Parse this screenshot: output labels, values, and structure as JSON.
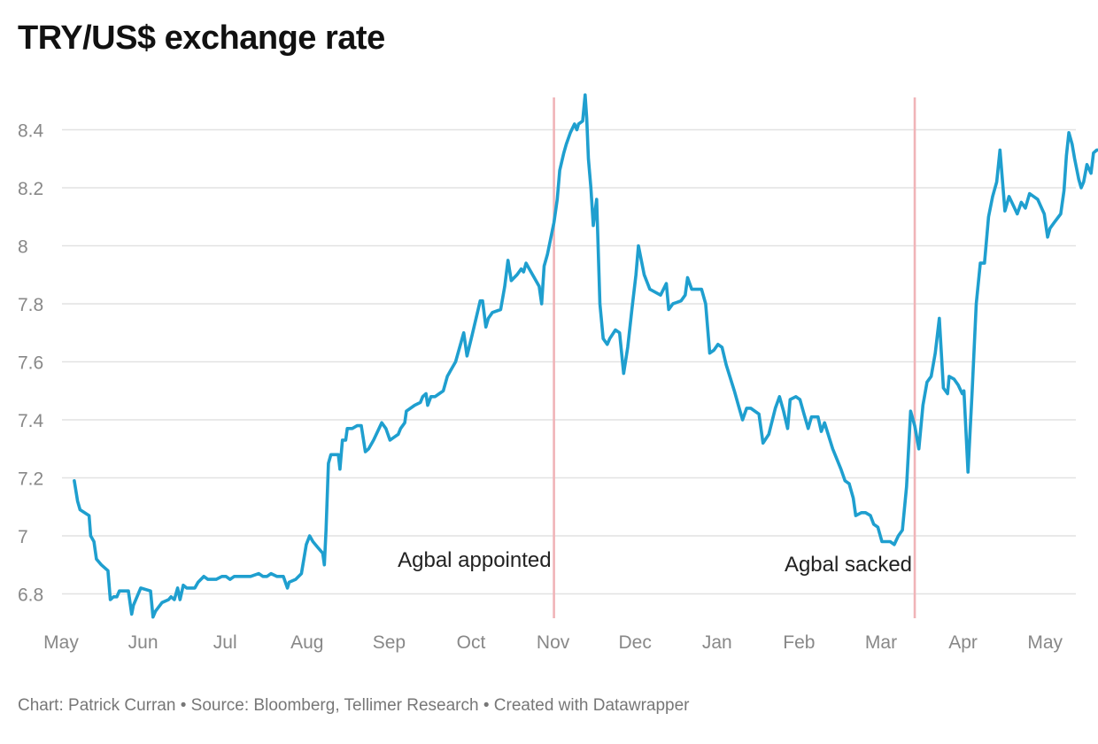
{
  "title": "TRY/US$ exchange rate",
  "footer": {
    "chart_by": "Chart: Patrick Curran",
    "source": "Source: Bloomberg, Tellimer Research",
    "created": "Created with Datawrapper",
    "separator": "•"
  },
  "colors": {
    "line": "#1f9fcf",
    "marker": "#f0b4b8",
    "grid": "#e2e2e2"
  },
  "chart_data": {
    "type": "line",
    "title": "TRY/US$ exchange rate",
    "xlabel": "",
    "ylabel": "",
    "ylim": [
      6.7,
      8.52
    ],
    "xlim": [
      0,
      12.35
    ],
    "y_ticks": [
      6.8,
      7,
      7.2,
      7.4,
      7.6,
      7.8,
      8,
      8.2,
      8.4
    ],
    "y_tick_labels": [
      "6.8",
      "7",
      "7.2",
      "7.4",
      "7.6",
      "7.8",
      "8",
      "8.2",
      "8.4"
    ],
    "x_ticks": [
      0,
      1,
      2,
      3,
      4,
      5,
      6,
      7,
      8,
      9,
      10,
      11,
      12
    ],
    "x_tick_labels": [
      "May",
      "Jun",
      "Jul",
      "Aug",
      "Sep",
      "Oct",
      "Nov",
      "Dec",
      "Jan",
      "Feb",
      "Mar",
      "Apr",
      "May"
    ],
    "grid": true,
    "annotations": [
      {
        "x": 6.0,
        "label": "Agbal appointed"
      },
      {
        "x": 10.4,
        "label": "Agbal sacked"
      }
    ],
    "series": [
      {
        "values": [
          [
            0.15,
            7.19
          ],
          [
            0.19,
            7.12
          ],
          [
            0.22,
            7.09
          ],
          [
            0.33,
            7.07
          ],
          [
            0.35,
            7.0
          ],
          [
            0.39,
            6.98
          ],
          [
            0.42,
            6.92
          ],
          [
            0.48,
            6.9
          ],
          [
            0.56,
            6.88
          ],
          [
            0.59,
            6.78
          ],
          [
            0.63,
            6.79
          ],
          [
            0.67,
            6.79
          ],
          [
            0.7,
            6.81
          ],
          [
            0.81,
            6.81
          ],
          [
            0.85,
            6.73
          ],
          [
            0.87,
            6.76
          ],
          [
            0.96,
            6.82
          ],
          [
            1.08,
            6.81
          ],
          [
            1.11,
            6.72
          ],
          [
            1.14,
            6.74
          ],
          [
            1.22,
            6.77
          ],
          [
            1.3,
            6.78
          ],
          [
            1.33,
            6.79
          ],
          [
            1.37,
            6.78
          ],
          [
            1.41,
            6.82
          ],
          [
            1.44,
            6.78
          ],
          [
            1.48,
            6.83
          ],
          [
            1.52,
            6.82
          ],
          [
            1.62,
            6.82
          ],
          [
            1.66,
            6.84
          ],
          [
            1.73,
            6.86
          ],
          [
            1.78,
            6.85
          ],
          [
            1.88,
            6.85
          ],
          [
            1.95,
            6.86
          ],
          [
            2.0,
            6.86
          ],
          [
            2.05,
            6.85
          ],
          [
            2.1,
            6.86
          ],
          [
            2.2,
            6.86
          ],
          [
            2.25,
            6.86
          ],
          [
            2.3,
            6.86
          ],
          [
            2.4,
            6.87
          ],
          [
            2.45,
            6.86
          ],
          [
            2.5,
            6.86
          ],
          [
            2.55,
            6.87
          ],
          [
            2.62,
            6.86
          ],
          [
            2.7,
            6.86
          ],
          [
            2.75,
            6.82
          ],
          [
            2.77,
            6.84
          ],
          [
            2.85,
            6.85
          ],
          [
            2.92,
            6.87
          ],
          [
            2.98,
            6.97
          ],
          [
            3.02,
            7.0
          ],
          [
            3.06,
            6.98
          ],
          [
            3.12,
            6.96
          ],
          [
            3.18,
            6.94
          ],
          [
            3.2,
            6.9
          ],
          [
            3.22,
            7.02
          ],
          [
            3.25,
            7.25
          ],
          [
            3.28,
            7.28
          ],
          [
            3.37,
            7.28
          ],
          [
            3.39,
            7.23
          ],
          [
            3.42,
            7.33
          ],
          [
            3.46,
            7.33
          ],
          [
            3.48,
            7.37
          ],
          [
            3.54,
            7.37
          ],
          [
            3.6,
            7.38
          ],
          [
            3.65,
            7.38
          ],
          [
            3.7,
            7.29
          ],
          [
            3.74,
            7.3
          ],
          [
            3.8,
            7.33
          ],
          [
            3.9,
            7.39
          ],
          [
            3.95,
            7.37
          ],
          [
            4.0,
            7.33
          ],
          [
            4.05,
            7.34
          ],
          [
            4.1,
            7.35
          ],
          [
            4.13,
            7.37
          ],
          [
            4.18,
            7.39
          ],
          [
            4.2,
            7.43
          ],
          [
            4.3,
            7.45
          ],
          [
            4.37,
            7.46
          ],
          [
            4.4,
            7.48
          ],
          [
            4.44,
            7.49
          ],
          [
            4.46,
            7.45
          ],
          [
            4.5,
            7.48
          ],
          [
            4.55,
            7.48
          ],
          [
            4.6,
            7.49
          ],
          [
            4.65,
            7.5
          ],
          [
            4.7,
            7.55
          ],
          [
            4.74,
            7.57
          ],
          [
            4.8,
            7.6
          ],
          [
            4.85,
            7.65
          ],
          [
            4.9,
            7.7
          ],
          [
            4.94,
            7.62
          ],
          [
            5.0,
            7.69
          ],
          [
            5.1,
            7.81
          ],
          [
            5.13,
            7.81
          ],
          [
            5.17,
            7.72
          ],
          [
            5.2,
            7.75
          ],
          [
            5.25,
            7.77
          ],
          [
            5.35,
            7.78
          ],
          [
            5.4,
            7.86
          ],
          [
            5.44,
            7.95
          ],
          [
            5.48,
            7.88
          ],
          [
            5.55,
            7.9
          ],
          [
            5.6,
            7.92
          ],
          [
            5.63,
            7.91
          ],
          [
            5.66,
            7.94
          ],
          [
            5.7,
            7.92
          ],
          [
            5.78,
            7.88
          ],
          [
            5.82,
            7.86
          ],
          [
            5.85,
            7.8
          ],
          [
            5.88,
            7.93
          ],
          [
            5.92,
            7.97
          ],
          [
            6.0,
            8.08
          ],
          [
            6.04,
            8.16
          ],
          [
            6.07,
            8.26
          ],
          [
            6.12,
            8.32
          ],
          [
            6.15,
            8.35
          ],
          [
            6.2,
            8.39
          ],
          [
            6.25,
            8.42
          ],
          [
            6.28,
            8.4
          ],
          [
            6.3,
            8.42
          ],
          [
            6.35,
            8.43
          ],
          [
            6.38,
            8.52
          ],
          [
            6.4,
            8.44
          ],
          [
            6.42,
            8.3
          ],
          [
            6.45,
            8.2
          ],
          [
            6.48,
            8.07
          ],
          [
            6.52,
            8.16
          ],
          [
            6.56,
            7.8
          ],
          [
            6.6,
            7.68
          ],
          [
            6.65,
            7.66
          ],
          [
            6.68,
            7.68
          ],
          [
            6.75,
            7.71
          ],
          [
            6.8,
            7.7
          ],
          [
            6.85,
            7.56
          ],
          [
            6.9,
            7.65
          ],
          [
            6.95,
            7.78
          ],
          [
            7.0,
            7.9
          ],
          [
            7.03,
            8.0
          ],
          [
            7.1,
            7.9
          ],
          [
            7.17,
            7.85
          ],
          [
            7.3,
            7.83
          ],
          [
            7.37,
            7.87
          ],
          [
            7.4,
            7.78
          ],
          [
            7.45,
            7.8
          ],
          [
            7.55,
            7.81
          ],
          [
            7.6,
            7.83
          ],
          [
            7.63,
            7.89
          ],
          [
            7.68,
            7.85
          ],
          [
            7.8,
            7.85
          ],
          [
            7.85,
            7.8
          ],
          [
            7.9,
            7.63
          ],
          [
            7.95,
            7.64
          ],
          [
            8.0,
            7.66
          ],
          [
            8.05,
            7.65
          ],
          [
            8.1,
            7.59
          ],
          [
            8.2,
            7.5
          ],
          [
            8.25,
            7.45
          ],
          [
            8.3,
            7.4
          ],
          [
            8.35,
            7.44
          ],
          [
            8.4,
            7.44
          ],
          [
            8.5,
            7.42
          ],
          [
            8.55,
            7.32
          ],
          [
            8.62,
            7.35
          ],
          [
            8.7,
            7.44
          ],
          [
            8.75,
            7.48
          ],
          [
            8.8,
            7.43
          ],
          [
            8.85,
            7.37
          ],
          [
            8.88,
            7.47
          ],
          [
            8.95,
            7.48
          ],
          [
            9.0,
            7.47
          ],
          [
            9.05,
            7.42
          ],
          [
            9.1,
            7.37
          ],
          [
            9.14,
            7.41
          ],
          [
            9.22,
            7.41
          ],
          [
            9.26,
            7.36
          ],
          [
            9.3,
            7.39
          ],
          [
            9.4,
            7.3
          ],
          [
            9.5,
            7.23
          ],
          [
            9.55,
            7.19
          ],
          [
            9.6,
            7.18
          ],
          [
            9.65,
            7.13
          ],
          [
            9.68,
            7.07
          ],
          [
            9.75,
            7.08
          ],
          [
            9.8,
            7.08
          ],
          [
            9.86,
            7.07
          ],
          [
            9.9,
            7.04
          ],
          [
            9.95,
            7.03
          ],
          [
            10.0,
            6.98
          ],
          [
            10.05,
            6.98
          ],
          [
            10.1,
            6.98
          ],
          [
            10.15,
            6.97
          ],
          [
            10.2,
            7.0
          ],
          [
            10.25,
            7.02
          ],
          [
            10.3,
            7.17
          ],
          [
            10.35,
            7.43
          ],
          [
            10.4,
            7.38
          ],
          [
            10.45,
            7.3
          ],
          [
            10.5,
            7.45
          ],
          [
            10.55,
            7.53
          ],
          [
            10.6,
            7.55
          ],
          [
            10.65,
            7.63
          ],
          [
            10.7,
            7.75
          ],
          [
            10.75,
            7.51
          ],
          [
            10.8,
            7.49
          ],
          [
            10.82,
            7.55
          ],
          [
            10.88,
            7.54
          ],
          [
            10.93,
            7.52
          ],
          [
            10.98,
            7.49
          ],
          [
            11.0,
            7.5
          ],
          [
            11.05,
            7.22
          ],
          [
            11.1,
            7.5
          ],
          [
            11.15,
            7.8
          ],
          [
            11.2,
            7.94
          ],
          [
            11.25,
            7.94
          ],
          [
            11.3,
            8.1
          ],
          [
            11.35,
            8.17
          ],
          [
            11.4,
            8.22
          ],
          [
            11.44,
            8.33
          ],
          [
            11.5,
            8.12
          ],
          [
            11.55,
            8.17
          ],
          [
            11.6,
            8.14
          ],
          [
            11.65,
            8.11
          ],
          [
            11.7,
            8.15
          ],
          [
            11.75,
            8.13
          ],
          [
            11.8,
            8.18
          ],
          [
            11.85,
            8.17
          ],
          [
            11.9,
            8.16
          ],
          [
            11.98,
            8.11
          ],
          [
            12.02,
            8.03
          ],
          [
            12.05,
            8.06
          ],
          [
            12.1,
            8.08
          ],
          [
            12.18,
            8.11
          ],
          [
            12.22,
            8.19
          ],
          [
            12.25,
            8.31
          ],
          [
            12.28,
            8.39
          ],
          [
            12.32,
            8.35
          ],
          [
            12.35,
            8.3
          ],
          [
            12.4,
            8.23
          ],
          [
            12.43,
            8.2
          ],
          [
            12.46,
            8.22
          ],
          [
            12.5,
            8.28
          ],
          [
            12.55,
            8.25
          ],
          [
            12.58,
            8.32
          ],
          [
            12.62,
            8.33
          ],
          [
            12.65,
            8.33
          ]
        ]
      }
    ]
  }
}
